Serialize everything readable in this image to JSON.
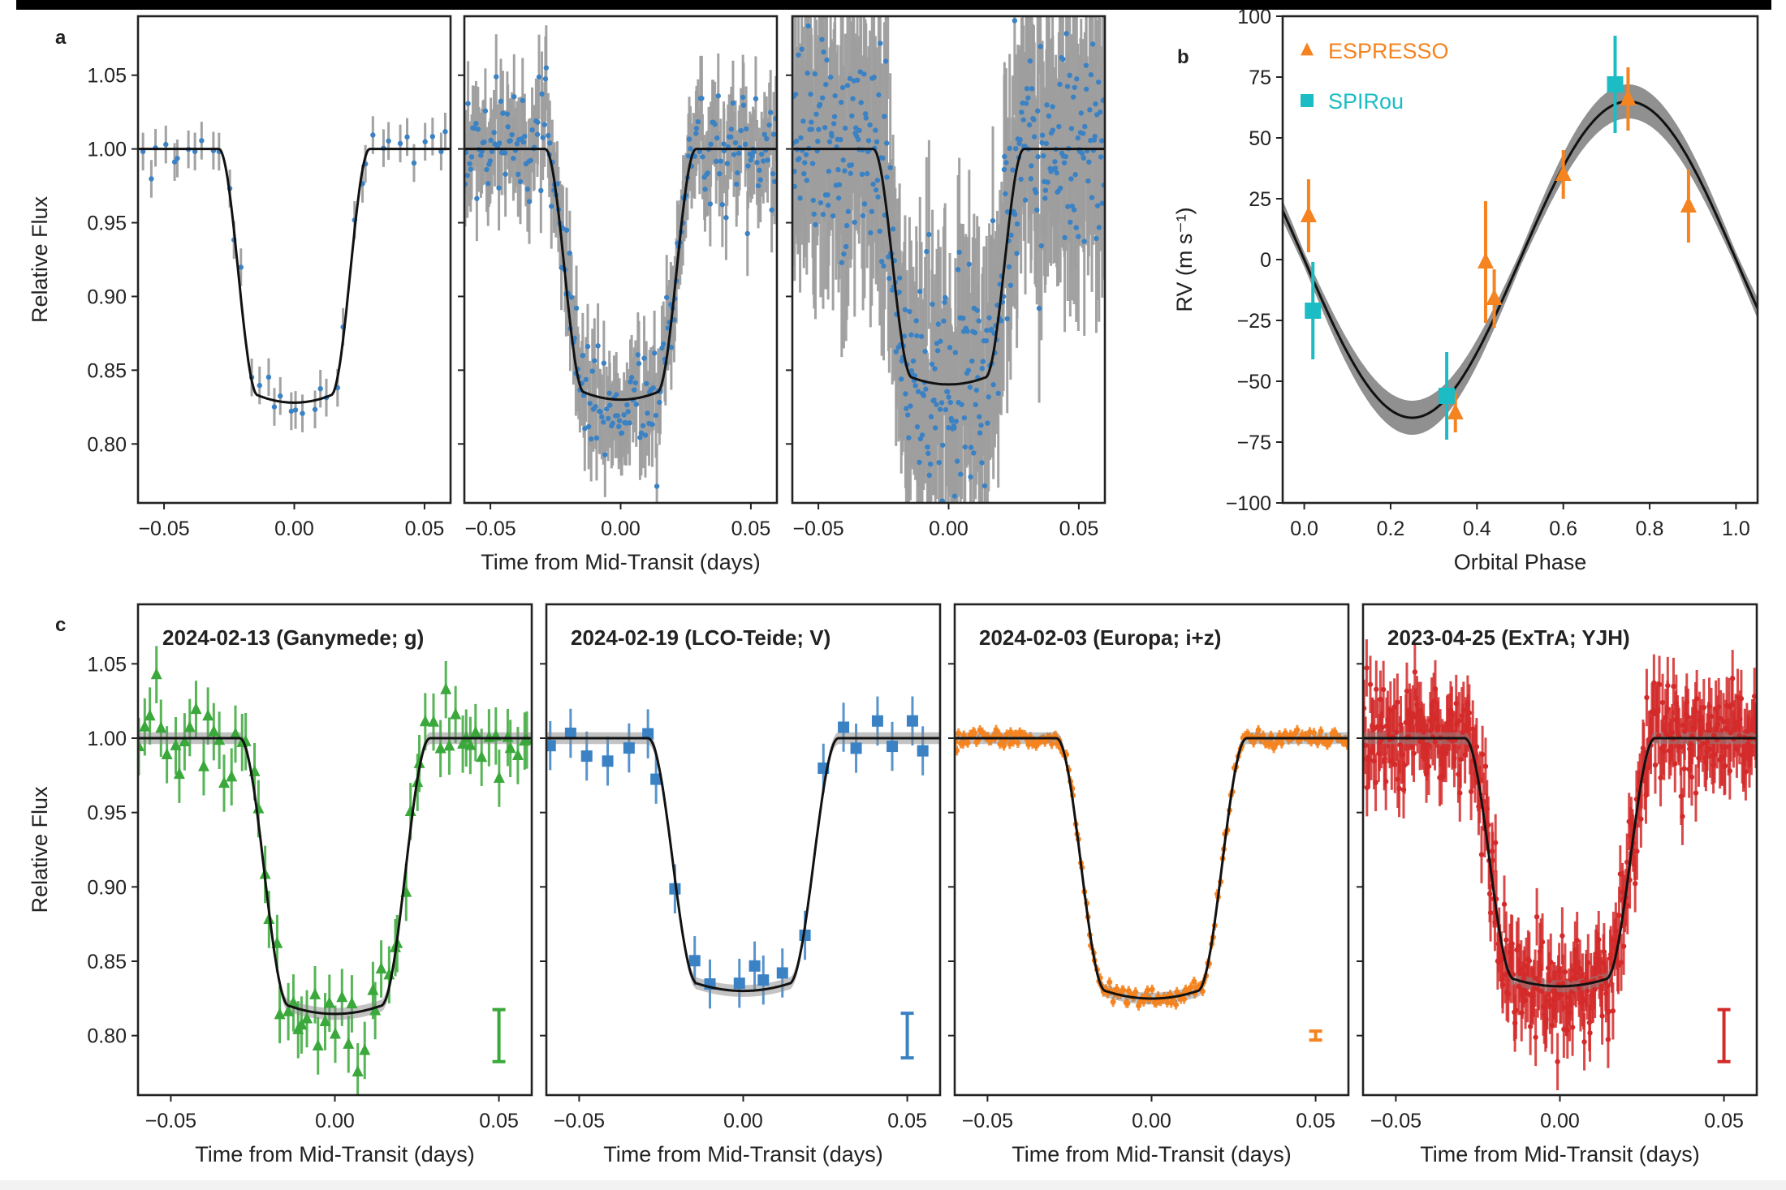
{
  "colors": {
    "model": "#111111",
    "errorbar": "#9e9e9e",
    "tess_points": "#3b82c4",
    "espresso": "#f5831f",
    "spirou": "#1cbcc4",
    "band": "#555555"
  },
  "panel_letters": {
    "a": "a",
    "b": "b",
    "c": "c"
  },
  "chart_data": [
    {
      "id": "a1",
      "type": "scatter",
      "panel": "a",
      "ylabel": "Relative Flux",
      "xlabel": "",
      "xlim": [
        -0.06,
        0.06
      ],
      "ylim": [
        0.76,
        1.09
      ],
      "xticks": [
        "-0.05",
        "0.00",
        "0.05"
      ],
      "yticks": [
        "0.80",
        "0.85",
        "0.90",
        "0.95",
        "1.00",
        "1.05"
      ],
      "depth": 0.167,
      "n_points": 40,
      "scatter": 0.008,
      "model": "transit"
    },
    {
      "id": "a2",
      "type": "scatter",
      "panel": "a",
      "xlabel": "Time from Mid-Transit (days)",
      "xlim": [
        -0.06,
        0.06
      ],
      "ylim": [
        0.76,
        1.09
      ],
      "xticks": [
        "-0.05",
        "0.00",
        "0.05"
      ],
      "depth": 0.165,
      "n_points": 260,
      "scatter": 0.018,
      "model": "transit"
    },
    {
      "id": "a3",
      "type": "scatter",
      "panel": "a",
      "xlabel": "",
      "xlim": [
        -0.06,
        0.06
      ],
      "ylim": [
        0.76,
        1.09
      ],
      "xticks": [
        "-0.05",
        "0.00",
        "0.05"
      ],
      "depth": 0.155,
      "n_points": 420,
      "scatter": 0.04,
      "model": "transit"
    },
    {
      "id": "b",
      "type": "scatter",
      "panel": "b",
      "ylabel": "RV (m s⁻¹)",
      "xlabel": "Orbital Phase",
      "xlim": [
        -0.05,
        1.05
      ],
      "ylim": [
        -100,
        100
      ],
      "xticks": [
        "0.0",
        "0.2",
        "0.4",
        "0.6",
        "0.8",
        "1.0"
      ],
      "yticks": [
        "-100",
        "-75",
        "-50",
        "-25",
        "0",
        "25",
        "50",
        "75",
        "100"
      ],
      "model": {
        "semi_amplitude": 65,
        "peak_phase": 0.75
      },
      "legend": {
        "position": "top-left",
        "entries": [
          "ESPRESSO",
          "SPIRou"
        ]
      },
      "series": [
        {
          "name": "ESPRESSO",
          "marker": "triangle",
          "points": [
            {
              "x": 0.01,
              "y": 18,
              "err": 15
            },
            {
              "x": 0.35,
              "y": -63,
              "err": 8
            },
            {
              "x": 0.42,
              "y": -1,
              "err": 25
            },
            {
              "x": 0.44,
              "y": -16,
              "err": 12
            },
            {
              "x": 0.6,
              "y": 35,
              "err": 10
            },
            {
              "x": 0.75,
              "y": 66,
              "err": 13
            },
            {
              "x": 0.89,
              "y": 22,
              "err": 15
            }
          ]
        },
        {
          "name": "SPIRou",
          "marker": "square",
          "points": [
            {
              "x": 0.02,
              "y": -21,
              "err": 20
            },
            {
              "x": 0.33,
              "y": -56,
              "err": 18
            },
            {
              "x": 0.72,
              "y": 72,
              "err": 20
            }
          ]
        }
      ]
    },
    {
      "id": "c1",
      "type": "scatter",
      "panel": "c",
      "title": "2024-02-13  (Ganymede; g)",
      "ylabel": "Relative Flux",
      "xlabel": "Time from Mid-Transit (days)",
      "xlim": [
        -0.06,
        0.06
      ],
      "ylim": [
        0.76,
        1.09
      ],
      "xticks": [
        "-0.05",
        "0.00",
        "0.05"
      ],
      "yticks": [
        "0.80",
        "0.85",
        "0.90",
        "0.95",
        "1.00",
        "1.05"
      ],
      "depth": 0.18,
      "n_points": 70,
      "scatter": 0.014,
      "marker": "triangle",
      "color": "#3aa83a",
      "typical_error": 0.035,
      "model": "transit"
    },
    {
      "id": "c2",
      "type": "scatter",
      "panel": "c",
      "title": "2024-02-19  (LCO-Teide; V)",
      "xlabel": "Time from Mid-Transit (days)",
      "xlim": [
        -0.06,
        0.06
      ],
      "ylim": [
        0.76,
        1.09
      ],
      "xticks": [
        "-0.05",
        "0.00",
        "0.05"
      ],
      "depth": 0.165,
      "n_points": 22,
      "scatter": 0.01,
      "marker": "square",
      "color": "#3b82c4",
      "typical_error": 0.03,
      "model": "transit"
    },
    {
      "id": "c3",
      "type": "scatter",
      "panel": "c",
      "title": "2024-02-03  (Europa; i+z)",
      "xlabel": "Time from Mid-Transit (days)",
      "xlim": [
        -0.06,
        0.06
      ],
      "ylim": [
        0.76,
        1.09
      ],
      "xticks": [
        "-0.05",
        "0.00",
        "0.05"
      ],
      "depth": 0.17,
      "n_points": 220,
      "scatter": 0.003,
      "marker": "cross",
      "color": "#f5831f",
      "typical_error": 0.006,
      "model": "transit"
    },
    {
      "id": "c4",
      "type": "scatter",
      "panel": "c",
      "title": "2023-04-25  (ExTrA; YJH)",
      "xlabel": "Time from Mid-Transit (days)",
      "xlim": [
        -0.06,
        0.06
      ],
      "ylim": [
        0.76,
        1.09
      ],
      "xticks": [
        "-0.05",
        "0.00",
        "0.05"
      ],
      "depth": 0.162,
      "n_points": 420,
      "scatter": 0.018,
      "marker": "dot",
      "color": "#d42a2a",
      "typical_error": 0.035,
      "model": "transit"
    }
  ]
}
